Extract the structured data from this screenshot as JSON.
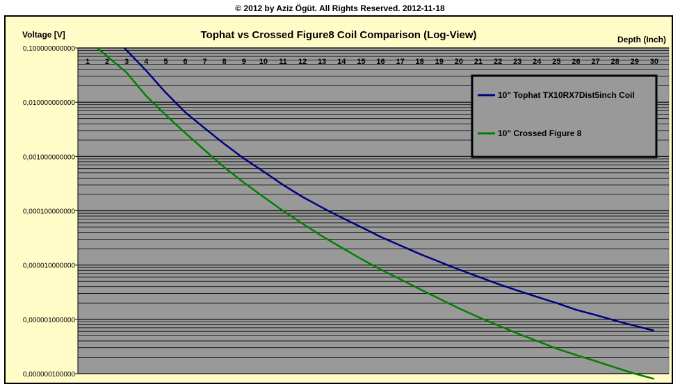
{
  "copyright": "© 2012 by Aziz Ögüt. All Rights Reserved. 2012-11-18",
  "chart_data": {
    "type": "line",
    "title": "Tophat vs Crossed Figure8 Coil Comparison (Log-View)",
    "ylabel": "Voltage [V]",
    "xlabel": "Depth (Inch)",
    "yscale": "log",
    "ylim": [
      1e-07,
      0.1
    ],
    "y_ticks": [
      0.1,
      0.01,
      0.001,
      0.0001,
      1e-05,
      1e-06,
      1e-07
    ],
    "y_tick_labels": [
      "0,100000000000",
      "0,010000000000",
      "0,001000000000",
      "0,000100000000",
      "0,000010000000",
      "0,000001000000",
      "0,000000100000"
    ],
    "x": [
      1,
      2,
      3,
      4,
      5,
      6,
      7,
      8,
      9,
      10,
      11,
      12,
      13,
      14,
      15,
      16,
      17,
      18,
      19,
      20,
      21,
      22,
      23,
      24,
      25,
      26,
      27,
      28,
      29,
      30
    ],
    "x_tick_labels": [
      "1",
      "2",
      "3",
      "4",
      "5",
      "6",
      "7",
      "8",
      "9",
      "10",
      "11",
      "12",
      "13",
      "14",
      "15",
      "16",
      "17",
      "18",
      "19",
      "20",
      "21",
      "22",
      "23",
      "24",
      "25",
      "26",
      "27",
      "28",
      "29",
      "30"
    ],
    "grid": true,
    "legend_position": "top-right",
    "series": [
      {
        "name": "10\" Tophat TX10RX7Dist5inch Coil",
        "color": "#000080",
        "values": [
          null,
          null,
          0.09,
          0.038,
          0.015,
          0.0065,
          0.0033,
          0.0017,
          0.00092,
          0.00053,
          0.0003,
          0.00018,
          0.000115,
          7.5e-05,
          5e-05,
          3.3e-05,
          2.3e-05,
          1.6e-05,
          1.15e-05,
          8.3e-06,
          6.1e-06,
          4.5e-06,
          3.4e-06,
          2.6e-06,
          2e-06,
          1.5e-06,
          1.2e-06,
          9.5e-07,
          7.6e-07,
          6.2e-07
        ]
      },
      {
        "name": "10\" Crossed Figure 8",
        "color": "#008000",
        "values": [
          null,
          0.07,
          0.035,
          0.013,
          0.0058,
          0.0027,
          0.0013,
          0.00063,
          0.00033,
          0.00018,
          0.0001,
          5.8e-05,
          3.4e-05,
          2.1e-05,
          1.3e-05,
          8.3e-06,
          5.5e-06,
          3.6e-06,
          2.4e-06,
          1.6e-06,
          1.1e-06,
          7.8e-07,
          5.5e-07,
          4e-07,
          2.9e-07,
          2.2e-07,
          1.7e-07,
          1.3e-07,
          1e-07,
          8e-08
        ]
      }
    ]
  }
}
